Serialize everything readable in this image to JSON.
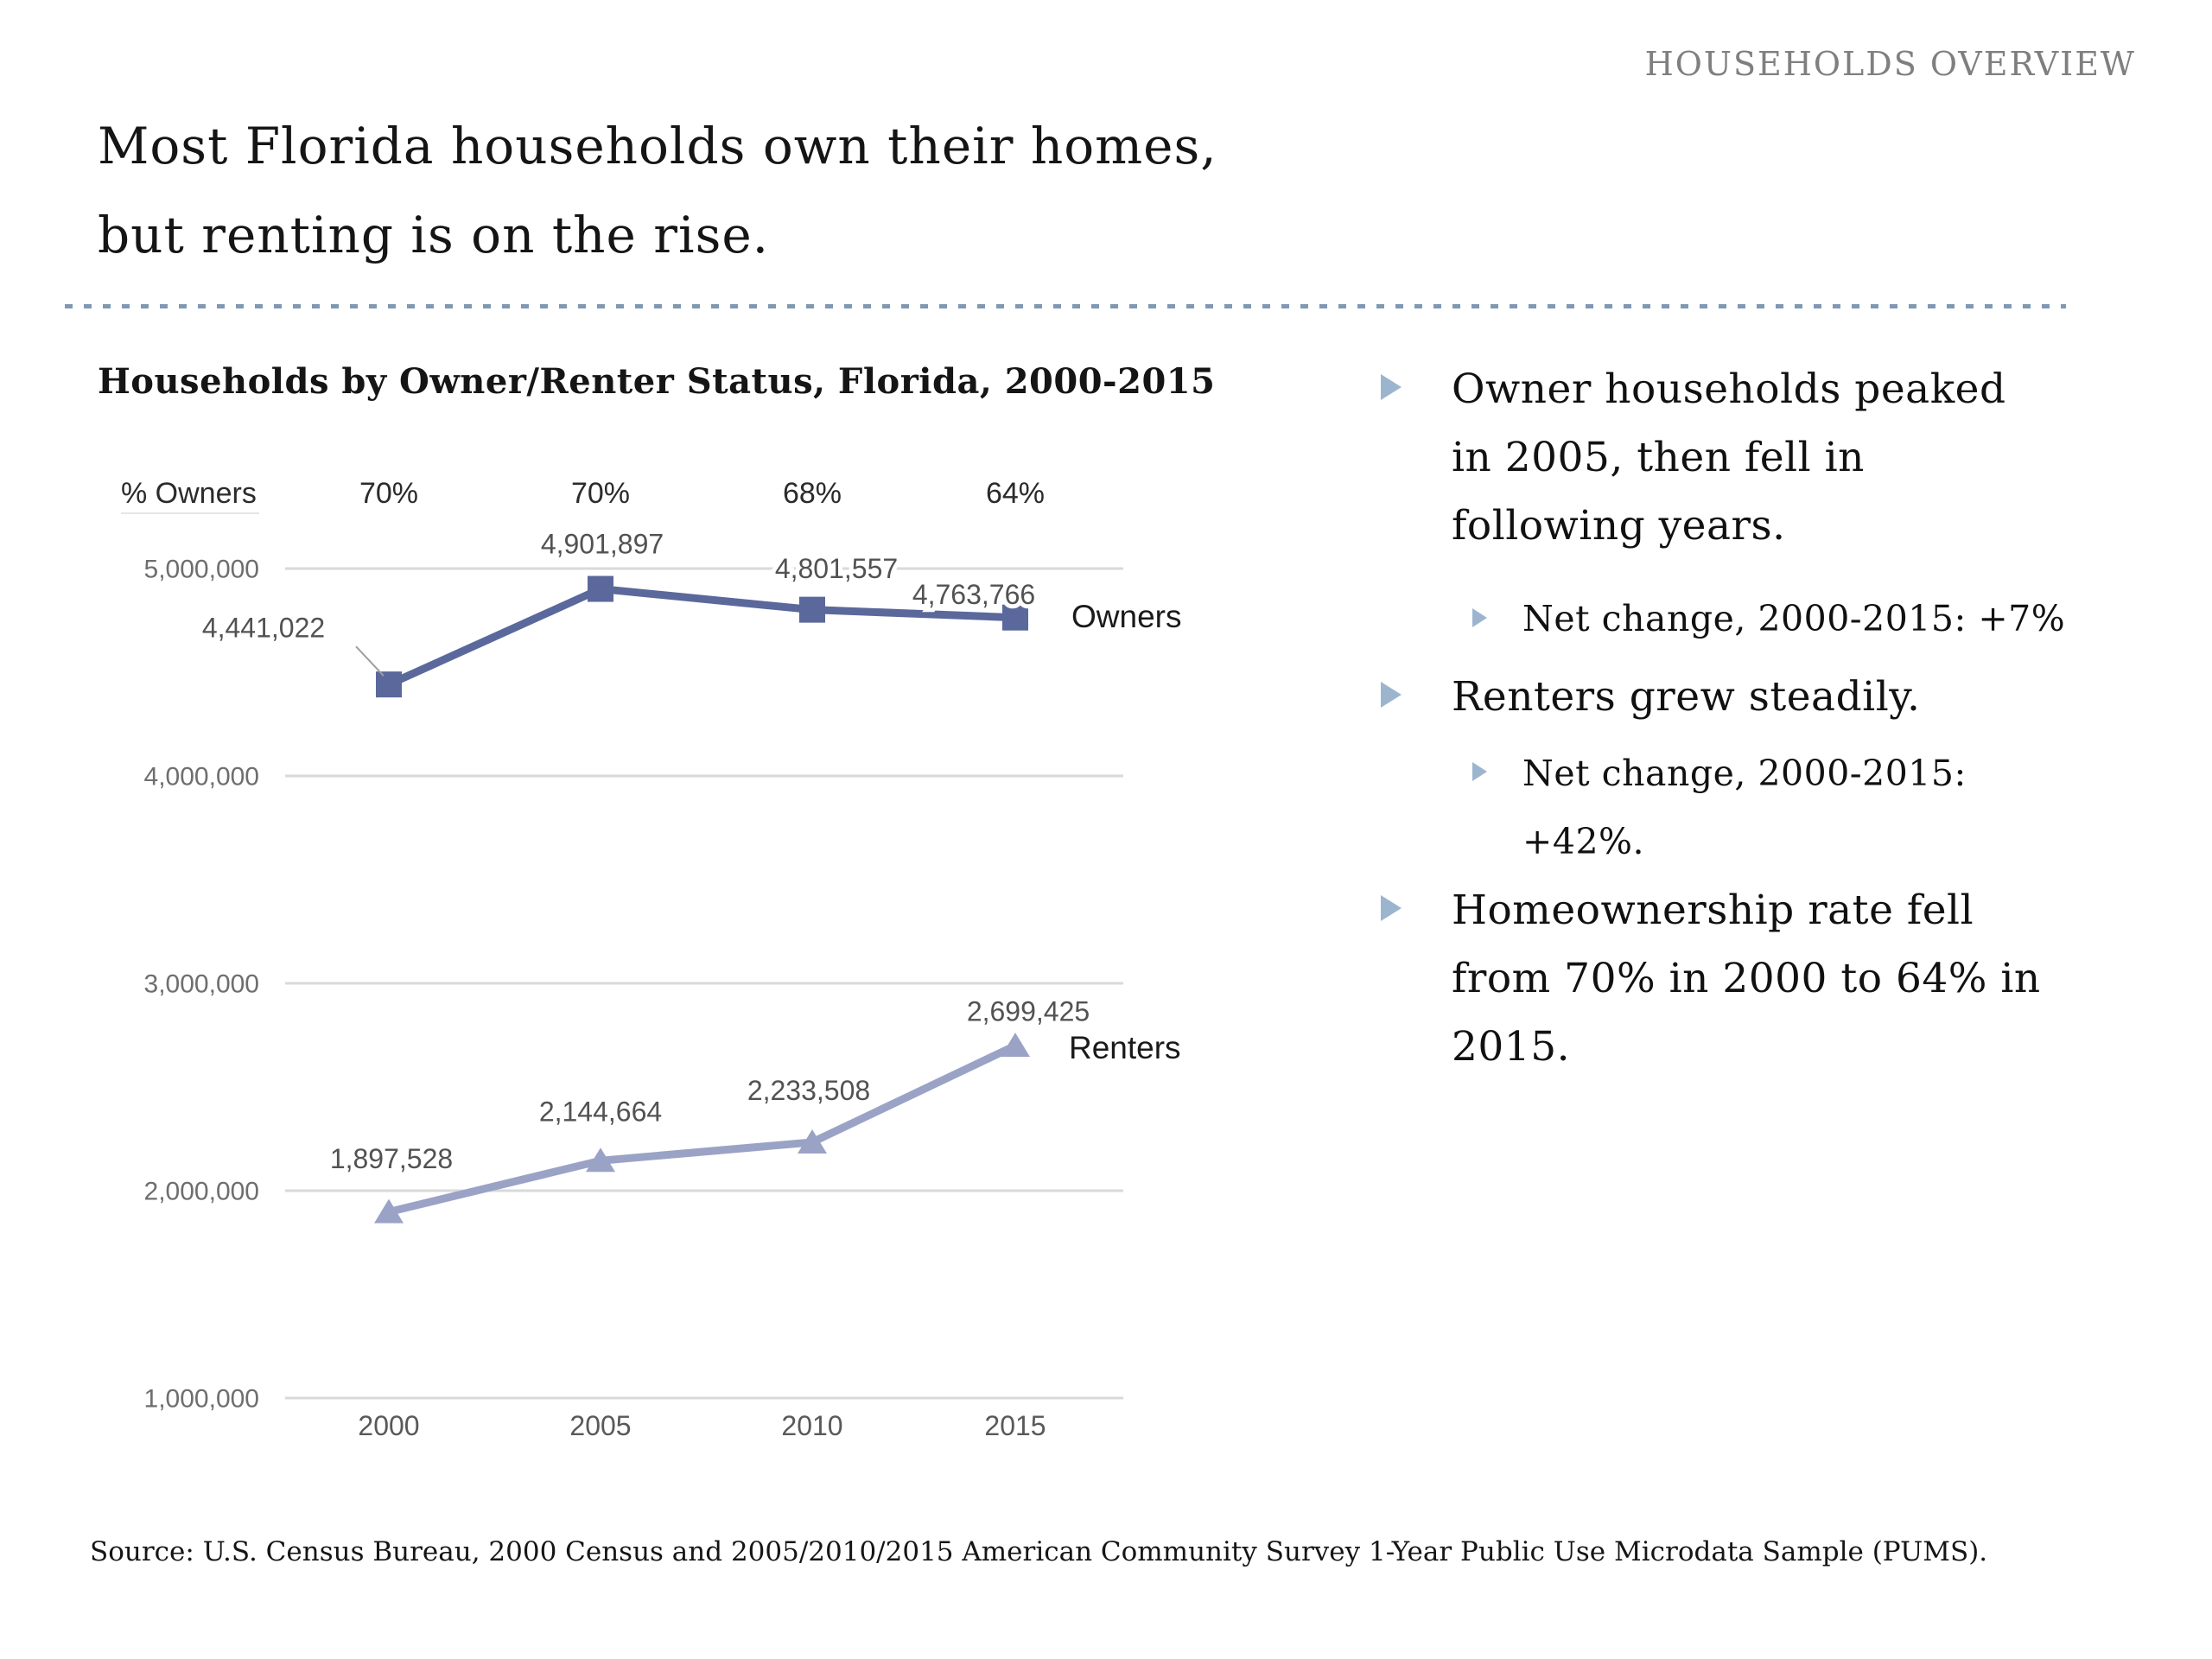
{
  "page": {
    "header": "HOUSEHOLDS OVERVIEW",
    "title_lines": [
      "Most Florida households own their homes,",
      "but renting is on the rise."
    ],
    "source": "Source: U.S. Census Bureau, 2000 Census and 2005/2010/2015 American Community Survey 1-Year Public Use Microdata Sample (PUMS)."
  },
  "bullets": [
    {
      "level": 1,
      "lines": [
        "Owner households peaked",
        "in 2005, then fell in",
        "following years."
      ]
    },
    {
      "level": 2,
      "lines": [
        "Net change, 2000-2015: +7%"
      ]
    },
    {
      "level": 1,
      "lines": [
        "Renters grew steadily."
      ]
    },
    {
      "level": 2,
      "lines": [
        "Net change, 2000-2015:",
        "+42%."
      ]
    },
    {
      "level": 1,
      "lines": [
        "Homeownership rate fell",
        "from 70% in 2000 to 64% in",
        "2015."
      ]
    }
  ],
  "colors": {
    "owners": "#5b689b",
    "renters": "#9aa3c6",
    "grid": "#d9d9d9",
    "axis_label": "#6e6e6e",
    "year_label": "#595959",
    "data_label": "#525252",
    "pct_label": "#2b2b2b",
    "legend_label": "#1a1a1a",
    "gray_header": "#7f7f7f",
    "divider": "#8099b3",
    "arrow": "#9cb5cf",
    "leader": "#9e9e9e"
  },
  "chart_data": {
    "type": "line",
    "title": "Households by Owner/Renter Status, Florida, 2000-2015",
    "categories": [
      "2000",
      "2005",
      "2010",
      "2015"
    ],
    "series": [
      {
        "name": "Owners",
        "values": [
          4441022,
          4901897,
          4801557,
          4763766
        ],
        "marker": "square"
      },
      {
        "name": "Renters",
        "values": [
          1897528,
          2144664,
          2233508,
          2699425
        ],
        "marker": "triangle"
      }
    ],
    "pct_row": {
      "label": "% Owners",
      "values": [
        "70%",
        "70%",
        "68%",
        "64%"
      ]
    },
    "y_axis": {
      "ticks": [
        5000000,
        4000000,
        3000000,
        2000000,
        1000000
      ],
      "min": 1000000,
      "max": 5000000
    },
    "xlabel": "",
    "ylabel": "",
    "grid": true,
    "legend_position": "right-of-last-point"
  }
}
